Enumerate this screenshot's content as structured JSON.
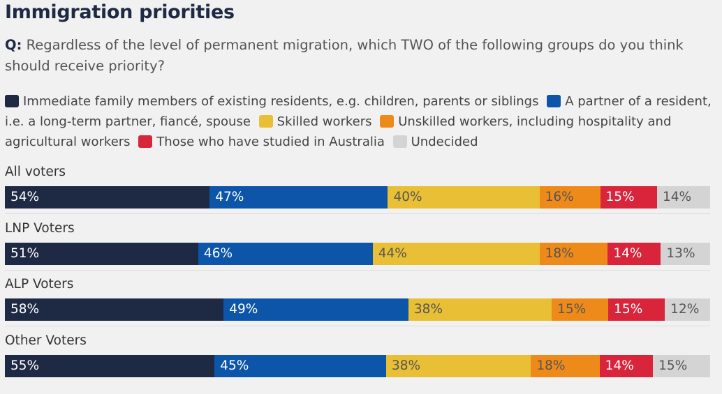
{
  "title": "Immigration priorities",
  "question": {
    "label": "Q:",
    "text": "Regardless of the level of permanent migration, which TWO of the following groups do you think should receive priority?"
  },
  "chart_data": {
    "type": "bar",
    "orientation": "horizontal-stacked",
    "title": "Immigration priorities",
    "categories": [
      "All voters",
      "LNP Voters",
      "ALP Voters",
      "Other Voters"
    ],
    "series": [
      {
        "name": "Immediate family members of existing residents, e.g. children, parents or siblings",
        "color": "#1e2a44",
        "values": [
          54,
          51,
          58,
          55
        ]
      },
      {
        "name": "A partner of a resident, i.e. a long-term partner, fiancé, spouse",
        "color": "#0c55a8",
        "values": [
          47,
          46,
          49,
          45
        ]
      },
      {
        "name": "Skilled workers",
        "color": "#e9bf35",
        "values": [
          40,
          44,
          38,
          38
        ]
      },
      {
        "name": "Unskilled workers, including hospitality and agricultural workers",
        "color": "#ee8a1a",
        "values": [
          16,
          18,
          15,
          18
        ]
      },
      {
        "name": "Those who have studied in Australia",
        "color": "#d9253b",
        "values": [
          15,
          14,
          15,
          14
        ]
      },
      {
        "name": "Undecided",
        "color": "#d4d4d4",
        "values": [
          14,
          13,
          12,
          15
        ]
      }
    ],
    "value_suffix": "%",
    "legend_position": "top"
  }
}
